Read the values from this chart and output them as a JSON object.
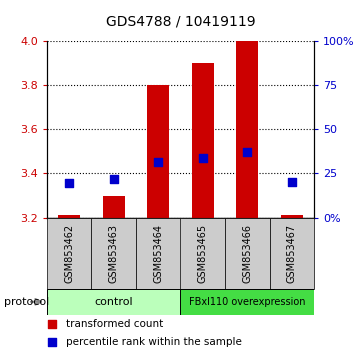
{
  "title": "GDS4788 / 10419119",
  "samples": [
    "GSM853462",
    "GSM853463",
    "GSM853464",
    "GSM853465",
    "GSM853466",
    "GSM853467"
  ],
  "red_bar_top": [
    3.21,
    3.3,
    3.8,
    3.9,
    4.0,
    3.21
  ],
  "red_bar_base": 3.2,
  "blue_square_y": [
    3.355,
    3.375,
    3.453,
    3.47,
    3.497,
    3.36
  ],
  "ylim_left": [
    3.2,
    4.0
  ],
  "ylim_right": [
    0,
    100
  ],
  "yticks_left": [
    3.2,
    3.4,
    3.6,
    3.8,
    4.0
  ],
  "yticks_right": [
    0,
    25,
    50,
    75,
    100
  ],
  "ytick_labels_right": [
    "0%",
    "25",
    "50",
    "75",
    "100%"
  ],
  "control_indices": [
    0,
    1,
    2
  ],
  "overexpr_indices": [
    3,
    4,
    5
  ],
  "control_label": "control",
  "overexpression_label": "FBxl110 overexpression",
  "protocol_label": "protocol",
  "legend_red": "transformed count",
  "legend_blue": "percentile rank within the sample",
  "bar_color": "#cc0000",
  "blue_color": "#0000cc",
  "left_axis_color": "#cc0000",
  "right_axis_color": "#0000cc",
  "control_bg": "#bbffbb",
  "overexpr_bg": "#44dd44",
  "sample_bg": "#cccccc",
  "bar_width": 0.5,
  "blue_square_size": 35,
  "figwidth": 3.61,
  "figheight": 3.54,
  "dpi": 100
}
